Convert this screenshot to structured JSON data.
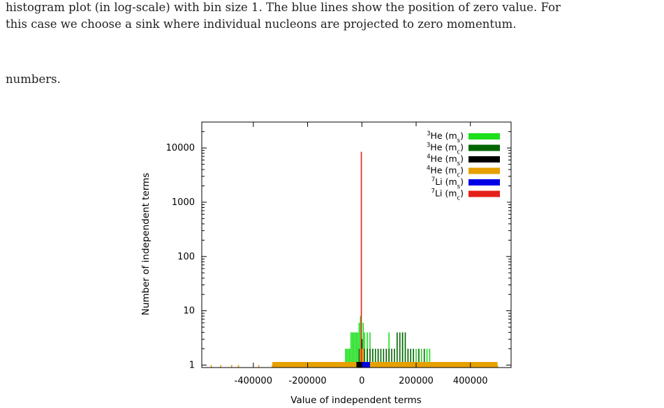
{
  "text": {
    "line1": "histogram plot (in log-scale) with bin size 1. The blue lines show the position of zero value. For",
    "line2": "this case we choose a sink where individual nucleons are projected to zero momentum.",
    "line3": "numbers."
  },
  "chart_data": {
    "type": "histogram",
    "xlabel": "Value of independent terms",
    "ylabel": "Number of independent terms",
    "x_ticks": [
      -400000,
      -200000,
      0,
      200000,
      400000
    ],
    "x_tick_labels": [
      "-400000",
      "-200000",
      "0",
      "200000",
      "400000"
    ],
    "y_scale": "log",
    "y_ticks": [
      1,
      10,
      100,
      1000,
      10000
    ],
    "y_tick_labels": [
      "1",
      "10",
      "100",
      "1000",
      "10000"
    ],
    "xlim": [
      -590000,
      550000
    ],
    "grid": false,
    "legend_position": "top-right",
    "series": [
      {
        "name": "3He (ms)",
        "nucleus": "He",
        "mass": "3",
        "sub": "s",
        "color": "#1be01b",
        "bars": [
          [
            -60000,
            2
          ],
          [
            -55000,
            2
          ],
          [
            -50000,
            2
          ],
          [
            -45000,
            2
          ],
          [
            -40000,
            4
          ],
          [
            -35000,
            4
          ],
          [
            -30000,
            4
          ],
          [
            -25000,
            4
          ],
          [
            -20000,
            4
          ],
          [
            -15000,
            4
          ],
          [
            -10000,
            6
          ],
          [
            -5000,
            8
          ],
          [
            5000,
            6
          ],
          [
            10000,
            4
          ],
          [
            20000,
            4
          ],
          [
            30000,
            4
          ],
          [
            40000,
            2
          ],
          [
            60000,
            2
          ],
          [
            100000,
            4
          ],
          [
            150000,
            4
          ],
          [
            170000,
            2
          ],
          [
            200000,
            2
          ],
          [
            220000,
            2
          ],
          [
            240000,
            2
          ],
          [
            250000,
            2
          ]
        ]
      },
      {
        "name": "3He (mc)",
        "nucleus": "He",
        "mass": "3",
        "sub": "c",
        "color": "#006400",
        "bars": [
          [
            -10000,
            2
          ],
          [
            0,
            3
          ],
          [
            10000,
            2
          ],
          [
            20000,
            2
          ],
          [
            30000,
            2
          ],
          [
            40000,
            2
          ],
          [
            50000,
            2
          ],
          [
            60000,
            2
          ],
          [
            70000,
            2
          ],
          [
            80000,
            2
          ],
          [
            90000,
            2
          ],
          [
            100000,
            2
          ],
          [
            110000,
            2
          ],
          [
            120000,
            2
          ],
          [
            130000,
            4
          ],
          [
            140000,
            4
          ],
          [
            150000,
            4
          ],
          [
            160000,
            4
          ],
          [
            170000,
            2
          ],
          [
            180000,
            2
          ],
          [
            190000,
            2
          ],
          [
            210000,
            2
          ],
          [
            230000,
            2
          ]
        ]
      },
      {
        "name": "4He (ms)",
        "nucleus": "He",
        "mass": "4",
        "sub": "s",
        "color": "#000000",
        "bars": [
          [
            -30000,
            1
          ],
          [
            -20000,
            1
          ],
          [
            -10000,
            1
          ],
          [
            0,
            3
          ],
          [
            5000,
            2
          ],
          [
            20000,
            1
          ],
          [
            40000,
            1
          ],
          [
            60000,
            1
          ],
          [
            240000,
            1
          ],
          [
            280000,
            1
          ],
          [
            300000,
            1
          ],
          [
            320000,
            1
          ],
          [
            340000,
            1
          ],
          [
            360000,
            1
          ],
          [
            380000,
            1
          ]
        ]
      },
      {
        "name": "4He (mc)",
        "nucleus": "He",
        "mass": "4",
        "sub": "c",
        "color": "#e6a000",
        "bars": [
          [
            -555000,
            1
          ],
          [
            -520000,
            1
          ],
          [
            -480000,
            1
          ],
          [
            -455000,
            1
          ],
          [
            -380000,
            1
          ],
          [
            -330000,
            1
          ],
          [
            -280000,
            1
          ],
          [
            -260000,
            1
          ],
          [
            -220000,
            1
          ],
          [
            -200000,
            1
          ],
          [
            -160000,
            1
          ],
          [
            -120000,
            1
          ],
          [
            -100000,
            1
          ],
          [
            -80000,
            1
          ],
          [
            -60000,
            1
          ],
          [
            -40000,
            1
          ],
          [
            -20000,
            1
          ],
          [
            -5000,
            2
          ],
          [
            0,
            2
          ],
          [
            5000,
            2
          ],
          [
            20000,
            1
          ],
          [
            60000,
            1
          ],
          [
            100000,
            1
          ],
          [
            140000,
            1
          ],
          [
            180000,
            1
          ],
          [
            220000,
            1
          ],
          [
            260000,
            1
          ],
          [
            300000,
            1
          ],
          [
            340000,
            1
          ],
          [
            380000,
            1
          ],
          [
            420000,
            1
          ],
          [
            460000,
            1
          ],
          [
            500000,
            1
          ]
        ]
      },
      {
        "name": "7Li (ms)",
        "nucleus": "Li",
        "mass": "7",
        "sub": "s",
        "color": "#0000e6",
        "bars": [
          [
            0,
            1
          ],
          [
            5000,
            1
          ],
          [
            10000,
            1
          ],
          [
            15000,
            1
          ],
          [
            20000,
            1
          ],
          [
            25000,
            1
          ],
          [
            30000,
            1
          ]
        ]
      },
      {
        "name": "7Li (mc)",
        "nucleus": "Li",
        "mass": "7",
        "sub": "c",
        "color": "#e6201a",
        "bars": [
          [
            -2000,
            8500
          ],
          [
            0,
            1
          ],
          [
            -8000,
            1
          ]
        ]
      }
    ]
  }
}
